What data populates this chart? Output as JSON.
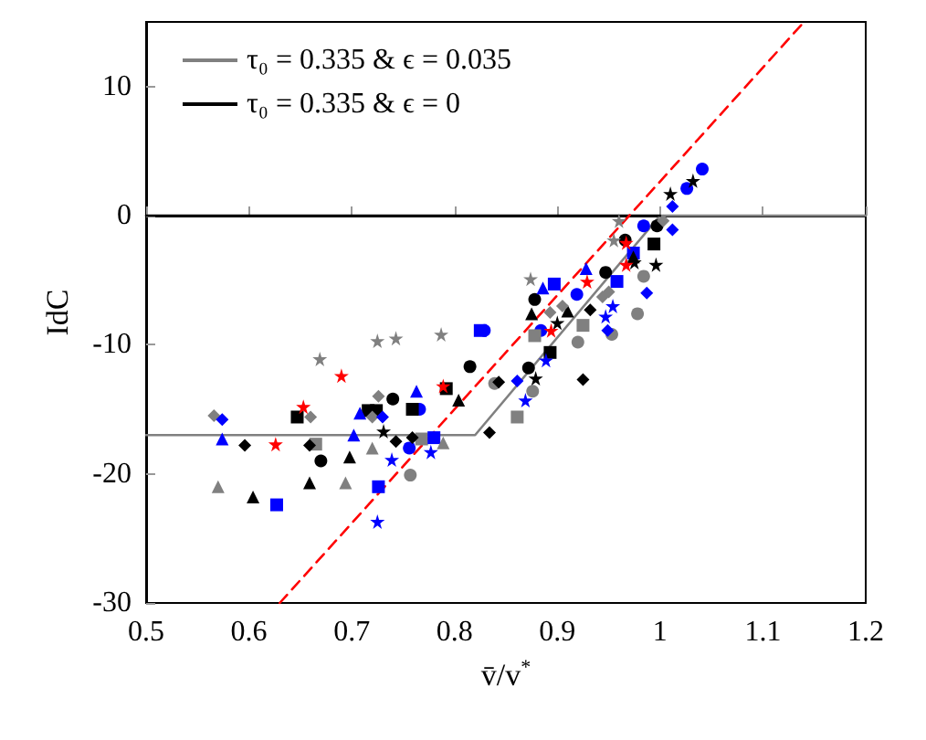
{
  "chart_data": {
    "type": "scatter",
    "xlabel": "v̄/v$^{*}$",
    "ylabel": "IdC",
    "xlim": [
      0.5,
      1.2
    ],
    "xticks": [
      0.5,
      0.6,
      0.7,
      0.8,
      0.9,
      1,
      1.1,
      1.2
    ],
    "ylim": [
      -30,
      15
    ],
    "yticks": [
      -30,
      -20,
      -10,
      0,
      10
    ],
    "grid": false,
    "legend": "top left",
    "series": [
      {
        "type": "line",
        "name": "τ₀ = 0.335 & ϵ = 0.035",
        "color": "#808080",
        "marker": "none",
        "line_style": "solid",
        "x": [
          0.5,
          0.82,
          1.0,
          1.2
        ],
        "values": [
          -17,
          -17,
          0,
          0
        ]
      },
      {
        "type": "line",
        "name": "τ₀ = 0.335 & ϵ = 0",
        "color": "#000000",
        "marker": "none",
        "line_style": "solid",
        "x": [
          0.5,
          1.0
        ],
        "values": [
          0,
          0
        ]
      },
      {
        "type": "line",
        "color": "#ff0000",
        "marker": "none",
        "line_style": "dashed",
        "x": [
          0.63,
          1.14
        ],
        "values": [
          -30,
          15
        ]
      },
      {
        "color": "#000000",
        "marker": "circle",
        "x": [
          0.67,
          0.74,
          0.815,
          0.872,
          0.878,
          0.947,
          0.966,
          0.997
        ],
        "values": [
          -19.0,
          -14.2,
          -11.7,
          -11.8,
          -6.5,
          -4.4,
          -1.9,
          -0.8
        ]
      },
      {
        "color": "#808080",
        "marker": "circle",
        "x": [
          0.757,
          0.839,
          0.876,
          0.92,
          0.953,
          0.978,
          0.984
        ],
        "values": [
          -20.1,
          -13.0,
          -13.6,
          -9.8,
          -9.2,
          -7.6,
          -4.7
        ]
      },
      {
        "color": "#0000ff",
        "marker": "circle",
        "x": [
          0.756,
          0.766,
          0.829,
          0.884,
          0.919,
          0.984,
          1.026,
          1.041
        ],
        "values": [
          -18.0,
          -15.0,
          -8.9,
          -8.9,
          -6.1,
          -0.8,
          2.1,
          3.6
        ]
      },
      {
        "color": "#000000",
        "marker": "square",
        "x": [
          0.647,
          0.716,
          0.724,
          0.759,
          0.792,
          0.893,
          0.994
        ],
        "values": [
          -15.6,
          -15.1,
          -15.1,
          -15.0,
          -13.4,
          -10.6,
          -2.2
        ]
      },
      {
        "color": "#808080",
        "marker": "square",
        "x": [
          0.665,
          0.768,
          0.861,
          0.878,
          0.925
        ],
        "values": [
          -17.7,
          -17.3,
          -15.6,
          -9.3,
          -8.5
        ]
      },
      {
        "color": "#0000ff",
        "marker": "square",
        "x": [
          0.627,
          0.726,
          0.78,
          0.825,
          0.897,
          0.958,
          0.974
        ],
        "values": [
          -22.4,
          -21.0,
          -17.2,
          -8.9,
          -5.3,
          -5.1,
          -2.9
        ]
      },
      {
        "color": "#000000",
        "marker": "triangle",
        "x": [
          0.604,
          0.659,
          0.698,
          0.804,
          0.875,
          0.91,
          0.974
        ],
        "values": [
          -21.8,
          -20.7,
          -18.7,
          -14.3,
          -7.6,
          -7.4,
          -3.2
        ]
      },
      {
        "color": "#808080",
        "marker": "triangle",
        "x": [
          0.57,
          0.694,
          0.72,
          0.789
        ],
        "values": [
          -21.0,
          -20.7,
          -18.0,
          -17.6
        ]
      },
      {
        "color": "#0000ff",
        "marker": "triangle",
        "x": [
          0.574,
          0.702,
          0.708,
          0.763,
          0.886,
          0.928
        ],
        "values": [
          -17.3,
          -17.0,
          -15.3,
          -13.6,
          -5.6,
          -4.1
        ]
      },
      {
        "color": "#000000",
        "marker": "diamond",
        "x": [
          0.596,
          0.659,
          0.743,
          0.759,
          0.834,
          0.843,
          0.925,
          0.932
        ],
        "values": [
          -17.8,
          -17.8,
          -17.5,
          -17.2,
          -16.8,
          -12.9,
          -12.7,
          -7.3
        ]
      },
      {
        "color": "#808080",
        "marker": "diamond",
        "x": [
          0.566,
          0.66,
          0.72,
          0.726,
          0.893,
          0.905,
          0.944,
          0.95,
          1.003
        ],
        "values": [
          -15.5,
          -15.6,
          -15.6,
          -14.0,
          -7.5,
          -7.0,
          -6.3,
          -5.9,
          -0.4
        ]
      },
      {
        "color": "#0000ff",
        "marker": "diamond",
        "x": [
          0.574,
          0.73,
          0.861,
          0.949,
          0.987,
          1.012,
          1.012
        ],
        "values": [
          -15.8,
          -15.6,
          -12.8,
          -8.9,
          -6.0,
          -1.1,
          0.7
        ]
      },
      {
        "color": "#000000",
        "marker": "star",
        "x": [
          0.731,
          0.879,
          0.9,
          0.975,
          0.996,
          1.01,
          1.032
        ],
        "values": [
          -16.7,
          -12.6,
          -8.3,
          -3.6,
          -3.8,
          1.7,
          2.7
        ]
      },
      {
        "color": "#808080",
        "marker": "star",
        "x": [
          0.669,
          0.725,
          0.743,
          0.787,
          0.874,
          0.955,
          0.96
        ],
        "values": [
          -11.1,
          -9.7,
          -9.5,
          -9.2,
          -4.9,
          -1.9,
          -0.4
        ]
      },
      {
        "color": "#0000ff",
        "marker": "star",
        "x": [
          0.725,
          0.739,
          0.777,
          0.869,
          0.889,
          0.947,
          0.954
        ],
        "values": [
          -23.7,
          -18.9,
          -18.3,
          -14.3,
          -11.2,
          -7.8,
          -7.0
        ]
      },
      {
        "color": "#ff0000",
        "marker": "star",
        "x": [
          0.626,
          0.653,
          0.69,
          0.789,
          0.894,
          0.929,
          0.967,
          0.967
        ],
        "values": [
          -17.7,
          -14.8,
          -12.4,
          -13.2,
          -8.9,
          -5.1,
          -2.1,
          -3.8
        ]
      }
    ]
  }
}
